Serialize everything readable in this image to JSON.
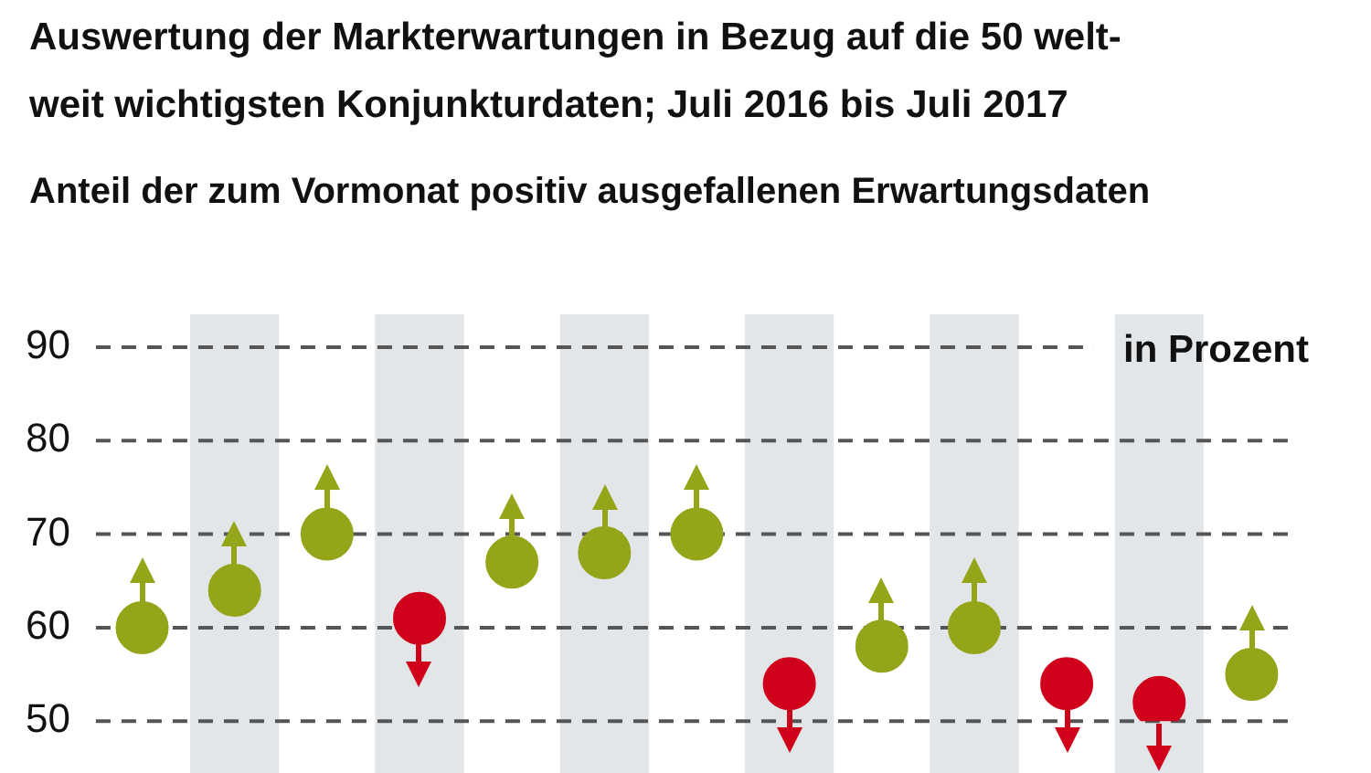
{
  "chart_data": {
    "type": "scatter",
    "title": "Auswertung der Markterwartungen in Bezug auf die 50 welt-\nweit wichtigsten Konjunkturdaten; Juli 2016 bis Juli 2017",
    "subtitle": "Anteil der zum Vormonat positiv ausgefallenen Erwartungsdaten",
    "annotations": [
      "in Prozent"
    ],
    "categories": [
      null,
      null,
      null,
      null,
      null,
      null,
      null,
      null,
      null,
      null,
      null,
      null,
      null
    ],
    "values": [
      60,
      64,
      70,
      61,
      67,
      68,
      70,
      54,
      58,
      60,
      54,
      52,
      55
    ],
    "colors": [
      "#94a51a",
      "#94a51a",
      "#94a51a",
      "#d0021b",
      "#94a51a",
      "#94a51a",
      "#94a51a",
      "#d0021b",
      "#94a51a",
      "#94a51a",
      "#d0021b",
      "#d0021b",
      "#94a51a"
    ],
    "ylim": [
      50,
      90
    ],
    "yticks": [
      50,
      60,
      70,
      80,
      90
    ],
    "grid": "y",
    "legend": false,
    "marker": "circle"
  }
}
